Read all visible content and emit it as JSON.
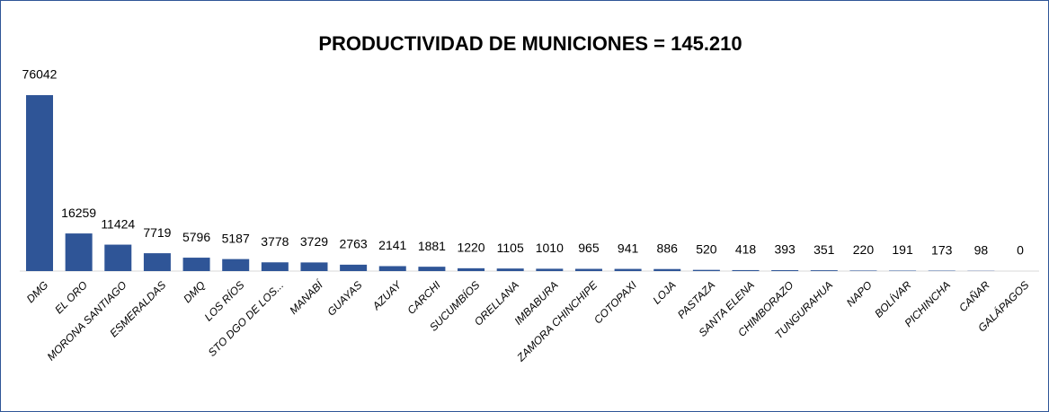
{
  "chart_data": {
    "type": "bar",
    "title": "PRODUCTIVIDAD DE MUNICIONES = 145.210",
    "categories": [
      "DMG",
      "EL ORO",
      "MORONA SANTIAGO",
      "ESMERALDAS",
      "DMQ",
      "LOS RÍOS",
      "STO DGO DE LOS...",
      "MANABÍ",
      "GUAYAS",
      "AZUAY",
      "CARCHI",
      "SUCUMBÍOS",
      "ORELLANA",
      "IMBABURA",
      "ZAMORA CHINCHIPE",
      "COTOPAXI",
      "LOJA",
      "PASTAZA",
      "SANTA ELENA",
      "CHIMBORAZO",
      "TUNGURAHUA",
      "NAPO",
      "BOLÍVAR",
      "PICHINCHA",
      "CAÑAR",
      "GALÁPAGOS"
    ],
    "values": [
      76042,
      16259,
      11424,
      7719,
      5796,
      5187,
      3778,
      3729,
      2763,
      2141,
      1881,
      1220,
      1105,
      1010,
      965,
      941,
      886,
      520,
      418,
      393,
      351,
      220,
      191,
      173,
      98,
      0
    ],
    "color": "#2f5597"
  }
}
